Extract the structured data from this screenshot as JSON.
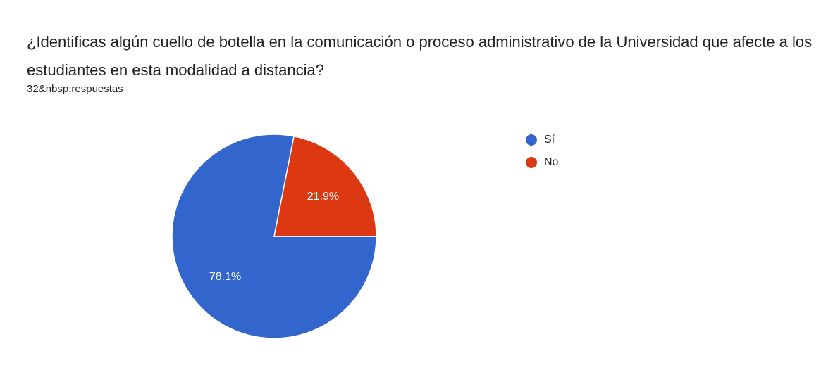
{
  "question": "¿Identificas algún cuello de botella en la comunicación o proceso administrativo de la Universidad que afecte a los estudiantes en esta modalidad a distancia?",
  "responses": "32&nbsp;respuestas",
  "chart_data": {
    "type": "pie",
    "categories": [
      "Sí",
      "No"
    ],
    "values": [
      78.1,
      21.9
    ],
    "labels": [
      "78.1%",
      "21.9%"
    ],
    "colors": [
      "#3366cc",
      "#dc3912"
    ],
    "legend": "right"
  }
}
